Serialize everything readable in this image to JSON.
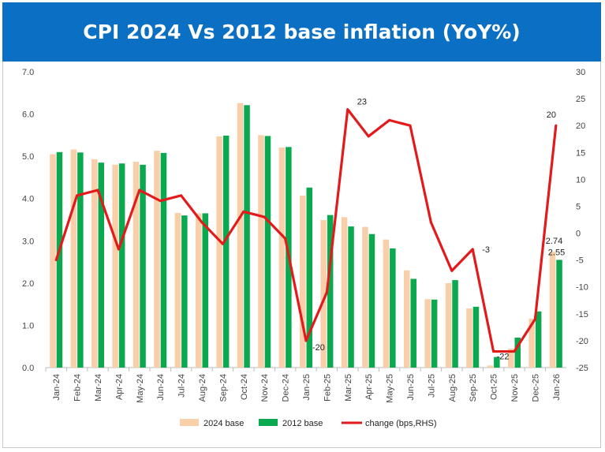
{
  "chart_data": {
    "type": "bar",
    "title": "CPI 2024 Vs 2012 base inflation (YoY%)",
    "categories": [
      "Jan-24",
      "Feb-24",
      "Mar-24",
      "Apr-24",
      "May-24",
      "Jun-24",
      "Jul-24",
      "Aug-24",
      "Sep-24",
      "Oct-24",
      "Nov-24",
      "Dec-24",
      "Jan-25",
      "Feb-25",
      "Mar-25",
      "Apr-25",
      "May-25",
      "Jun-25",
      "Jul-25",
      "Aug-25",
      "Sep-25",
      "Oct-25",
      "Nov-25",
      "Dec-25",
      "Jan-26"
    ],
    "series": [
      {
        "name": "2024 base",
        "type": "bar",
        "axis": "left",
        "color": "#f8cfa8",
        "values": [
          5.05,
          5.16,
          4.93,
          4.8,
          4.87,
          5.13,
          3.66,
          3.65,
          5.47,
          6.26,
          5.5,
          5.21,
          4.07,
          3.49,
          3.56,
          3.33,
          3.03,
          2.3,
          1.62,
          2.0,
          1.4,
          0.05,
          0.45,
          1.16,
          2.74
        ]
      },
      {
        "name": "2012 base",
        "type": "bar",
        "axis": "left",
        "color": "#0aa84f",
        "values": [
          5.1,
          5.09,
          4.85,
          4.83,
          4.8,
          5.08,
          3.6,
          3.65,
          5.49,
          6.21,
          5.48,
          5.22,
          4.26,
          3.61,
          3.34,
          3.16,
          2.82,
          2.1,
          1.61,
          2.07,
          1.44,
          0.25,
          0.71,
          1.33,
          2.55
        ]
      },
      {
        "name": "change (bps,RHS)",
        "type": "line",
        "axis": "right",
        "color": "#e31a1c",
        "values": [
          -5,
          7,
          8,
          -3,
          8,
          6,
          7,
          2,
          -2,
          4,
          3,
          -1,
          -20,
          -11,
          23,
          18,
          21,
          20,
          2,
          -7,
          -3,
          -22,
          -22,
          -16,
          20
        ]
      }
    ],
    "y_left": {
      "range": [
        0,
        7
      ],
      "ticks": [
        "0.0",
        "1.0",
        "2.0",
        "3.0",
        "4.0",
        "5.0",
        "6.0",
        "7.0"
      ]
    },
    "y_right": {
      "range": [
        -25,
        30
      ],
      "ticks": [
        "-25",
        "-20",
        "-15",
        "-10",
        "-5",
        "0",
        "5",
        "10",
        "15",
        "20",
        "25",
        "30"
      ]
    },
    "annotations": [
      {
        "category": "Jan-25",
        "series": "change (bps,RHS)",
        "text": "-20"
      },
      {
        "category": "Mar-25",
        "series": "change (bps,RHS)",
        "text": "23"
      },
      {
        "category": "Sep-25",
        "series": "change (bps,RHS)",
        "text": "-3"
      },
      {
        "category": "Oct-25",
        "series": "change (bps,RHS)",
        "text": "-22"
      },
      {
        "category": "Jan-26",
        "series": "change (bps,RHS)",
        "text": "20"
      },
      {
        "category": "Jan-26",
        "series": "2024 base",
        "text": "2.74"
      },
      {
        "category": "Jan-26",
        "series": "2012 base",
        "text": "2.55"
      }
    ],
    "grid": false,
    "legend": "bottom-center"
  }
}
